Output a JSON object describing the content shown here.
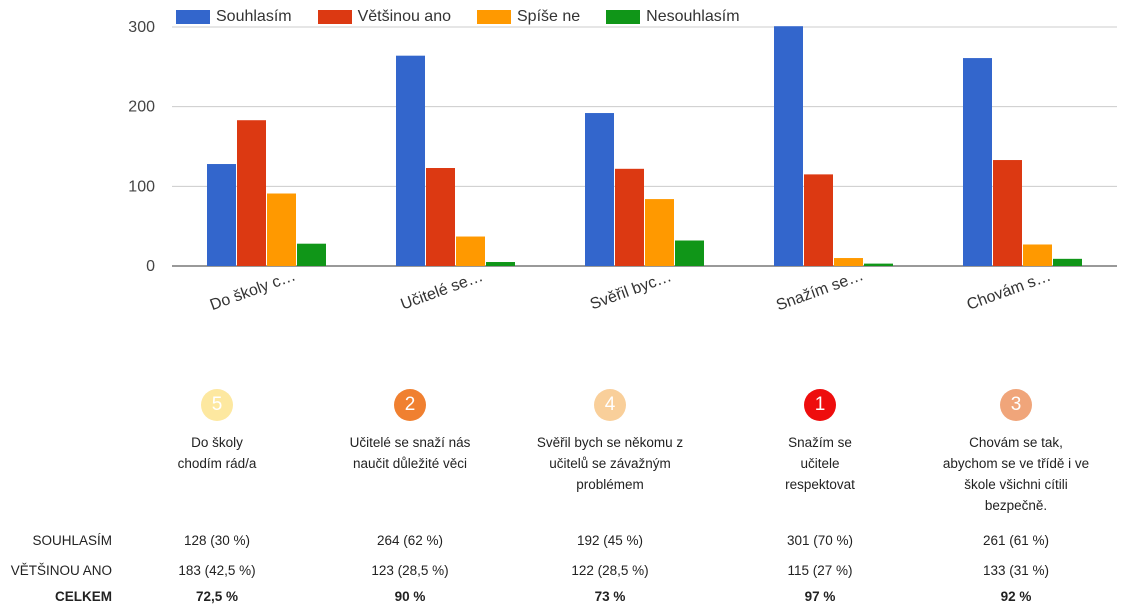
{
  "chart_data": {
    "type": "bar",
    "categories": [
      "Do školy c…",
      "Učitelé se…",
      "Svěřil byc…",
      "Snažím se…",
      "Chovám s…"
    ],
    "series": [
      {
        "name": "Souhlasím",
        "color": "#3366cc",
        "values": [
          128,
          264,
          192,
          301,
          261
        ]
      },
      {
        "name": "Většinou ano",
        "color": "#dc3912",
        "values": [
          183,
          123,
          122,
          115,
          133
        ]
      },
      {
        "name": "Spíše ne",
        "color": "#ff9900",
        "values": [
          91,
          37,
          84,
          10,
          27
        ]
      },
      {
        "name": "Nesouhlasím",
        "color": "#109618",
        "values": [
          28,
          5,
          32,
          3,
          9
        ]
      }
    ],
    "yticks": [
      0,
      100,
      200,
      300
    ],
    "ylim": [
      0,
      300
    ],
    "legend_position": "top"
  },
  "ranks": [
    {
      "number": "5",
      "color": "#fde8a0",
      "description": [
        "Do školy",
        "chodím rád/a"
      ]
    },
    {
      "number": "2",
      "color": "#f08030",
      "description": [
        "Učitelé se snaží nás",
        "naučit důležité věci"
      ]
    },
    {
      "number": "4",
      "color": "#f9cf9a",
      "description": [
        "Svěřil bych se někomu z",
        "učitelů se závažným",
        "problémem"
      ]
    },
    {
      "number": "1",
      "color": "#ee0d0d",
      "description": [
        "Snažím se",
        "učitele",
        "respektovat"
      ]
    },
    {
      "number": "3",
      "color": "#f0a57a",
      "description": [
        "Chovám se tak,",
        "abychom se ve třídě i ve",
        "škole všichni cítili",
        "bezpečně."
      ]
    }
  ],
  "table": {
    "rows": [
      {
        "label": "SOUHLASÍM",
        "bold": false,
        "values": [
          "128 (30 %)",
          "264 (62 %)",
          "192 (45 %)",
          "301 (70 %)",
          "261 (61 %)"
        ]
      },
      {
        "label": "VĚTŠINOU ANO",
        "bold": false,
        "values": [
          "183 (42,5 %)",
          "123 (28,5 %)",
          "122 (28,5 %)",
          "115 (27 %)",
          "133 (31 %)"
        ]
      },
      {
        "label": "CELKEM",
        "bold": true,
        "values": [
          "72,5 %",
          "90 %",
          "73 %",
          "97 %",
          "92 %"
        ]
      }
    ]
  }
}
